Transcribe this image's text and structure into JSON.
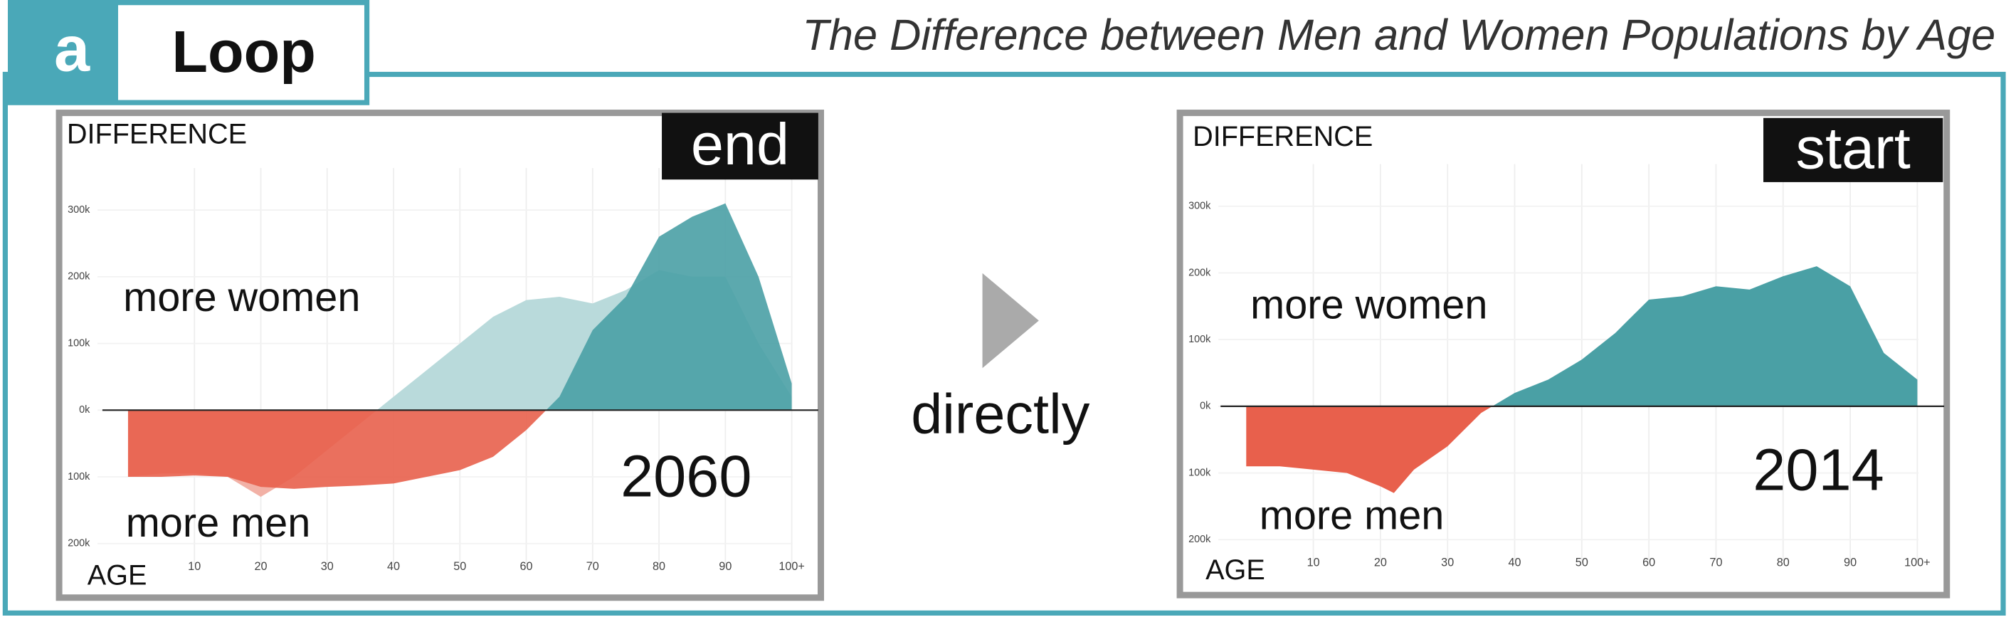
{
  "header": {
    "letter": "a",
    "label": "Loop",
    "title": "The Difference between Men and Women Populations by Age",
    "transition": "directly"
  },
  "chart_data": [
    {
      "type": "area",
      "badge": "end",
      "year": "2060",
      "ylabel": "DIFFERENCE",
      "xlabel": "AGE",
      "upper_label": "more women",
      "lower_label": "more men",
      "x": [
        0,
        5,
        10,
        15,
        20,
        25,
        30,
        35,
        40,
        45,
        50,
        55,
        60,
        65,
        70,
        75,
        80,
        85,
        90,
        95,
        100
      ],
      "series": [
        {
          "color": "#b9dadb",
          "negative_color": "#f2b1a6",
          "values": [
            -100000,
            -95000,
            -95000,
            -100000,
            -130000,
            -100000,
            -60000,
            -20000,
            20000,
            60000,
            100000,
            140000,
            165000,
            170000,
            160000,
            180000,
            210000,
            200000,
            200000,
            100000,
            20000
          ]
        },
        {
          "color": "#4aa0a5",
          "negative_color": "#e8604c",
          "values": [
            -100000,
            -100000,
            -98000,
            -100000,
            -115000,
            -118000,
            -115000,
            -113000,
            -110000,
            -100000,
            -90000,
            -70000,
            -30000,
            20000,
            120000,
            170000,
            260000,
            290000,
            310000,
            200000,
            40000
          ]
        }
      ],
      "xlim": [
        -10,
        104
      ],
      "ylim": [
        -260000,
        440000
      ],
      "xticks": [
        10,
        20,
        30,
        40,
        50,
        60,
        70,
        80,
        90,
        {
          "value": 100,
          "label": "100+"
        }
      ],
      "yticks": [
        {
          "value": -200000,
          "label": "200k"
        },
        {
          "value": -100000,
          "label": "100k"
        },
        {
          "value": 0,
          "label": "0k"
        },
        {
          "value": 100000,
          "label": "100k"
        },
        {
          "value": 200000,
          "label": "200k"
        },
        {
          "value": 300000,
          "label": "300k"
        }
      ],
      "grid": true
    },
    {
      "type": "area",
      "badge": "start",
      "year": "2014",
      "ylabel": "DIFFERENCE",
      "xlabel": "AGE",
      "upper_label": "more women",
      "lower_label": "more men",
      "x": [
        0,
        5,
        10,
        15,
        20,
        22,
        25,
        30,
        35,
        40,
        45,
        50,
        55,
        60,
        65,
        70,
        75,
        80,
        85,
        90,
        95,
        100
      ],
      "series": [
        {
          "color": "#4aa0a5",
          "negative_color": "#e8604c",
          "values": [
            -90000,
            -90000,
            -95000,
            -100000,
            -120000,
            -130000,
            -95000,
            -60000,
            -10000,
            20000,
            40000,
            70000,
            110000,
            160000,
            165000,
            180000,
            175000,
            195000,
            210000,
            180000,
            80000,
            40000
          ]
        }
      ],
      "xlim": [
        -9.5,
        104
      ],
      "ylim": [
        -260000,
        440000
      ],
      "xticks": [
        10,
        20,
        30,
        40,
        50,
        60,
        70,
        80,
        90,
        {
          "value": 100,
          "label": "100+"
        }
      ],
      "yticks": [
        {
          "value": -200000,
          "label": "200k"
        },
        {
          "value": -100000,
          "label": "100k"
        },
        {
          "value": 0,
          "label": "0k"
        },
        {
          "value": 100000,
          "label": "100k"
        },
        {
          "value": 200000,
          "label": "200k"
        },
        {
          "value": 300000,
          "label": "300k"
        }
      ],
      "grid": true
    }
  ]
}
